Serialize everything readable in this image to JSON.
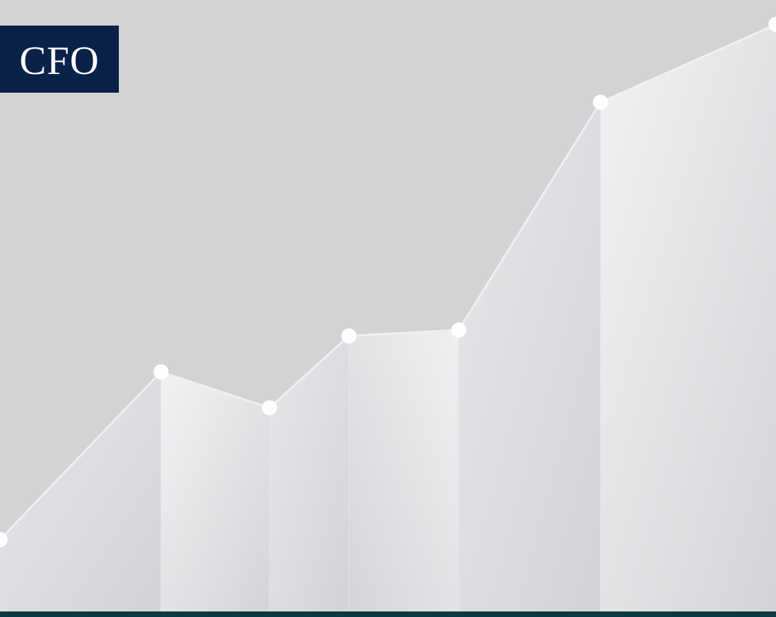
{
  "logo": {
    "text": "CFO"
  },
  "colors": {
    "background": "#d2d3d5",
    "logo_background": "#0a2249",
    "logo_text": "#ffffff",
    "bottom_bar": "#0c3a3e",
    "marker": "#ffffff",
    "line": "#eef0f2"
  },
  "decorative_trend": {
    "icon": "rising-line-graphic",
    "levels": [
      0.12,
      0.4,
      0.34,
      0.46,
      0.47,
      0.85,
      0.98
    ]
  }
}
